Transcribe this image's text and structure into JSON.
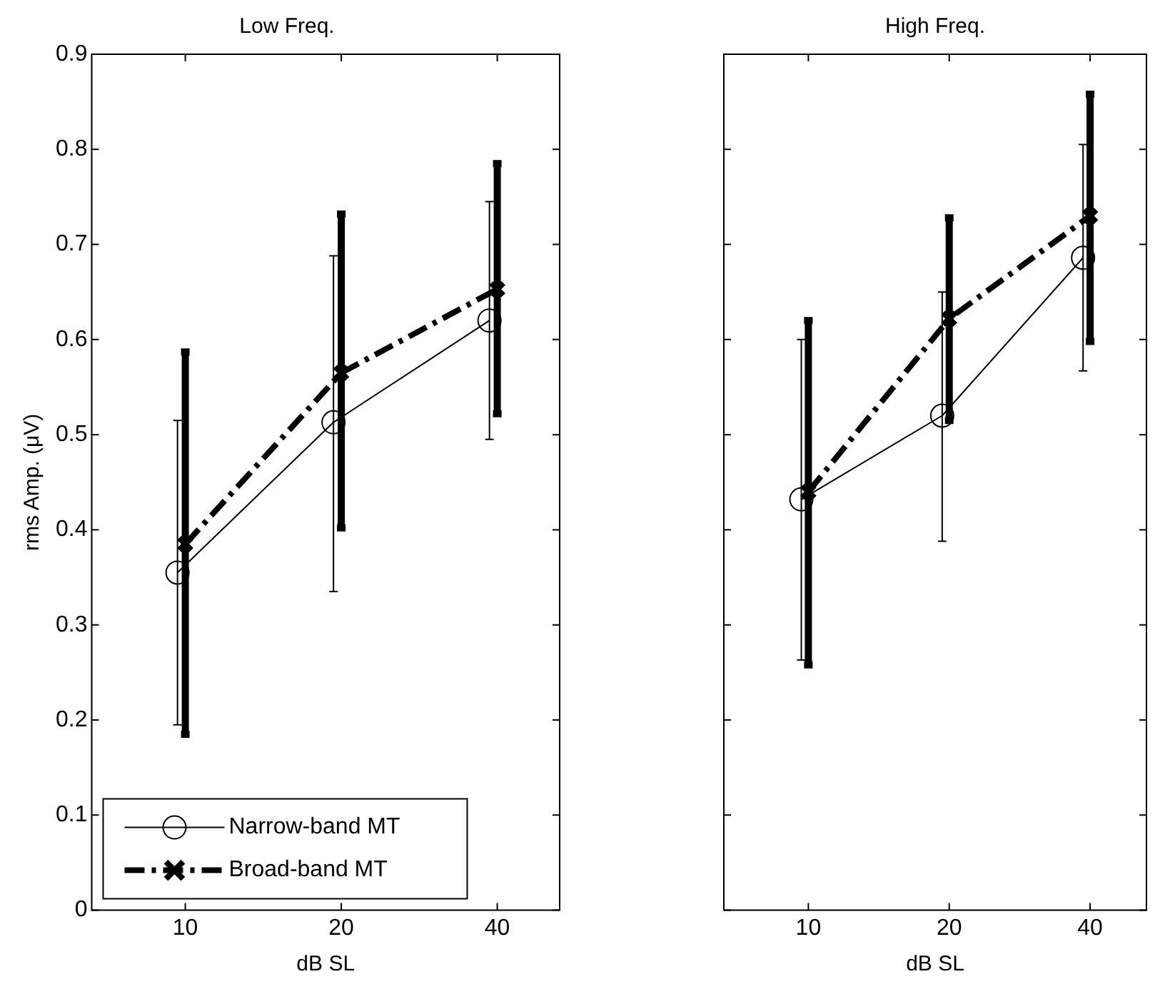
{
  "chart_data": [
    {
      "type": "line",
      "title": "Low Freq.",
      "xlabel": "dB SL",
      "ylabel": "rms Amp. (μV)",
      "categories": [
        "10",
        "20",
        "40"
      ],
      "ylim": [
        0,
        0.9
      ],
      "yticks": [
        0,
        0.1,
        0.2,
        0.3,
        0.4,
        0.5,
        0.6,
        0.7,
        0.8,
        0.9
      ],
      "grid": false,
      "legend": "bottom left",
      "series": [
        {
          "name": "Narrow-band MT",
          "color": "#000000",
          "marker": "circle",
          "line_style": "solid",
          "values": [
            0.355,
            0.513,
            0.62
          ],
          "errors": [
            [
              0.195,
              0.515
            ],
            [
              0.335,
              0.688
            ],
            [
              0.495,
              0.745
            ]
          ]
        },
        {
          "name": "Broad-band MT",
          "color": "#000000",
          "marker": "cross",
          "line_style": "dashed",
          "values": [
            0.385,
            0.565,
            0.653
          ],
          "errors": [
            [
              0.185,
              0.587
            ],
            [
              0.402,
              0.732
            ],
            [
              0.522,
              0.785
            ]
          ]
        }
      ]
    },
    {
      "type": "line",
      "title": "High Freq.",
      "xlabel": "dB SL",
      "categories": [
        "10",
        "20",
        "40"
      ],
      "ylim": [
        0,
        0.9
      ],
      "yticks": [
        0,
        0.1,
        0.2,
        0.3,
        0.4,
        0.5,
        0.6,
        0.7,
        0.8,
        0.9
      ],
      "grid": false,
      "tick_labels": "x",
      "series": [
        {
          "color": "#000000",
          "marker": "circle",
          "line_style": "solid",
          "values": [
            0.432,
            0.52,
            0.686
          ],
          "errors": [
            [
              0.263,
              0.6
            ],
            [
              0.388,
              0.65
            ],
            [
              0.567,
              0.805
            ]
          ]
        },
        {
          "color": "#000000",
          "marker": "cross",
          "line_style": "dashed",
          "values": [
            0.44,
            0.622,
            0.73
          ],
          "errors": [
            [
              0.258,
              0.62
            ],
            [
              0.515,
              0.728
            ],
            [
              0.598,
              0.858
            ]
          ]
        }
      ]
    }
  ]
}
